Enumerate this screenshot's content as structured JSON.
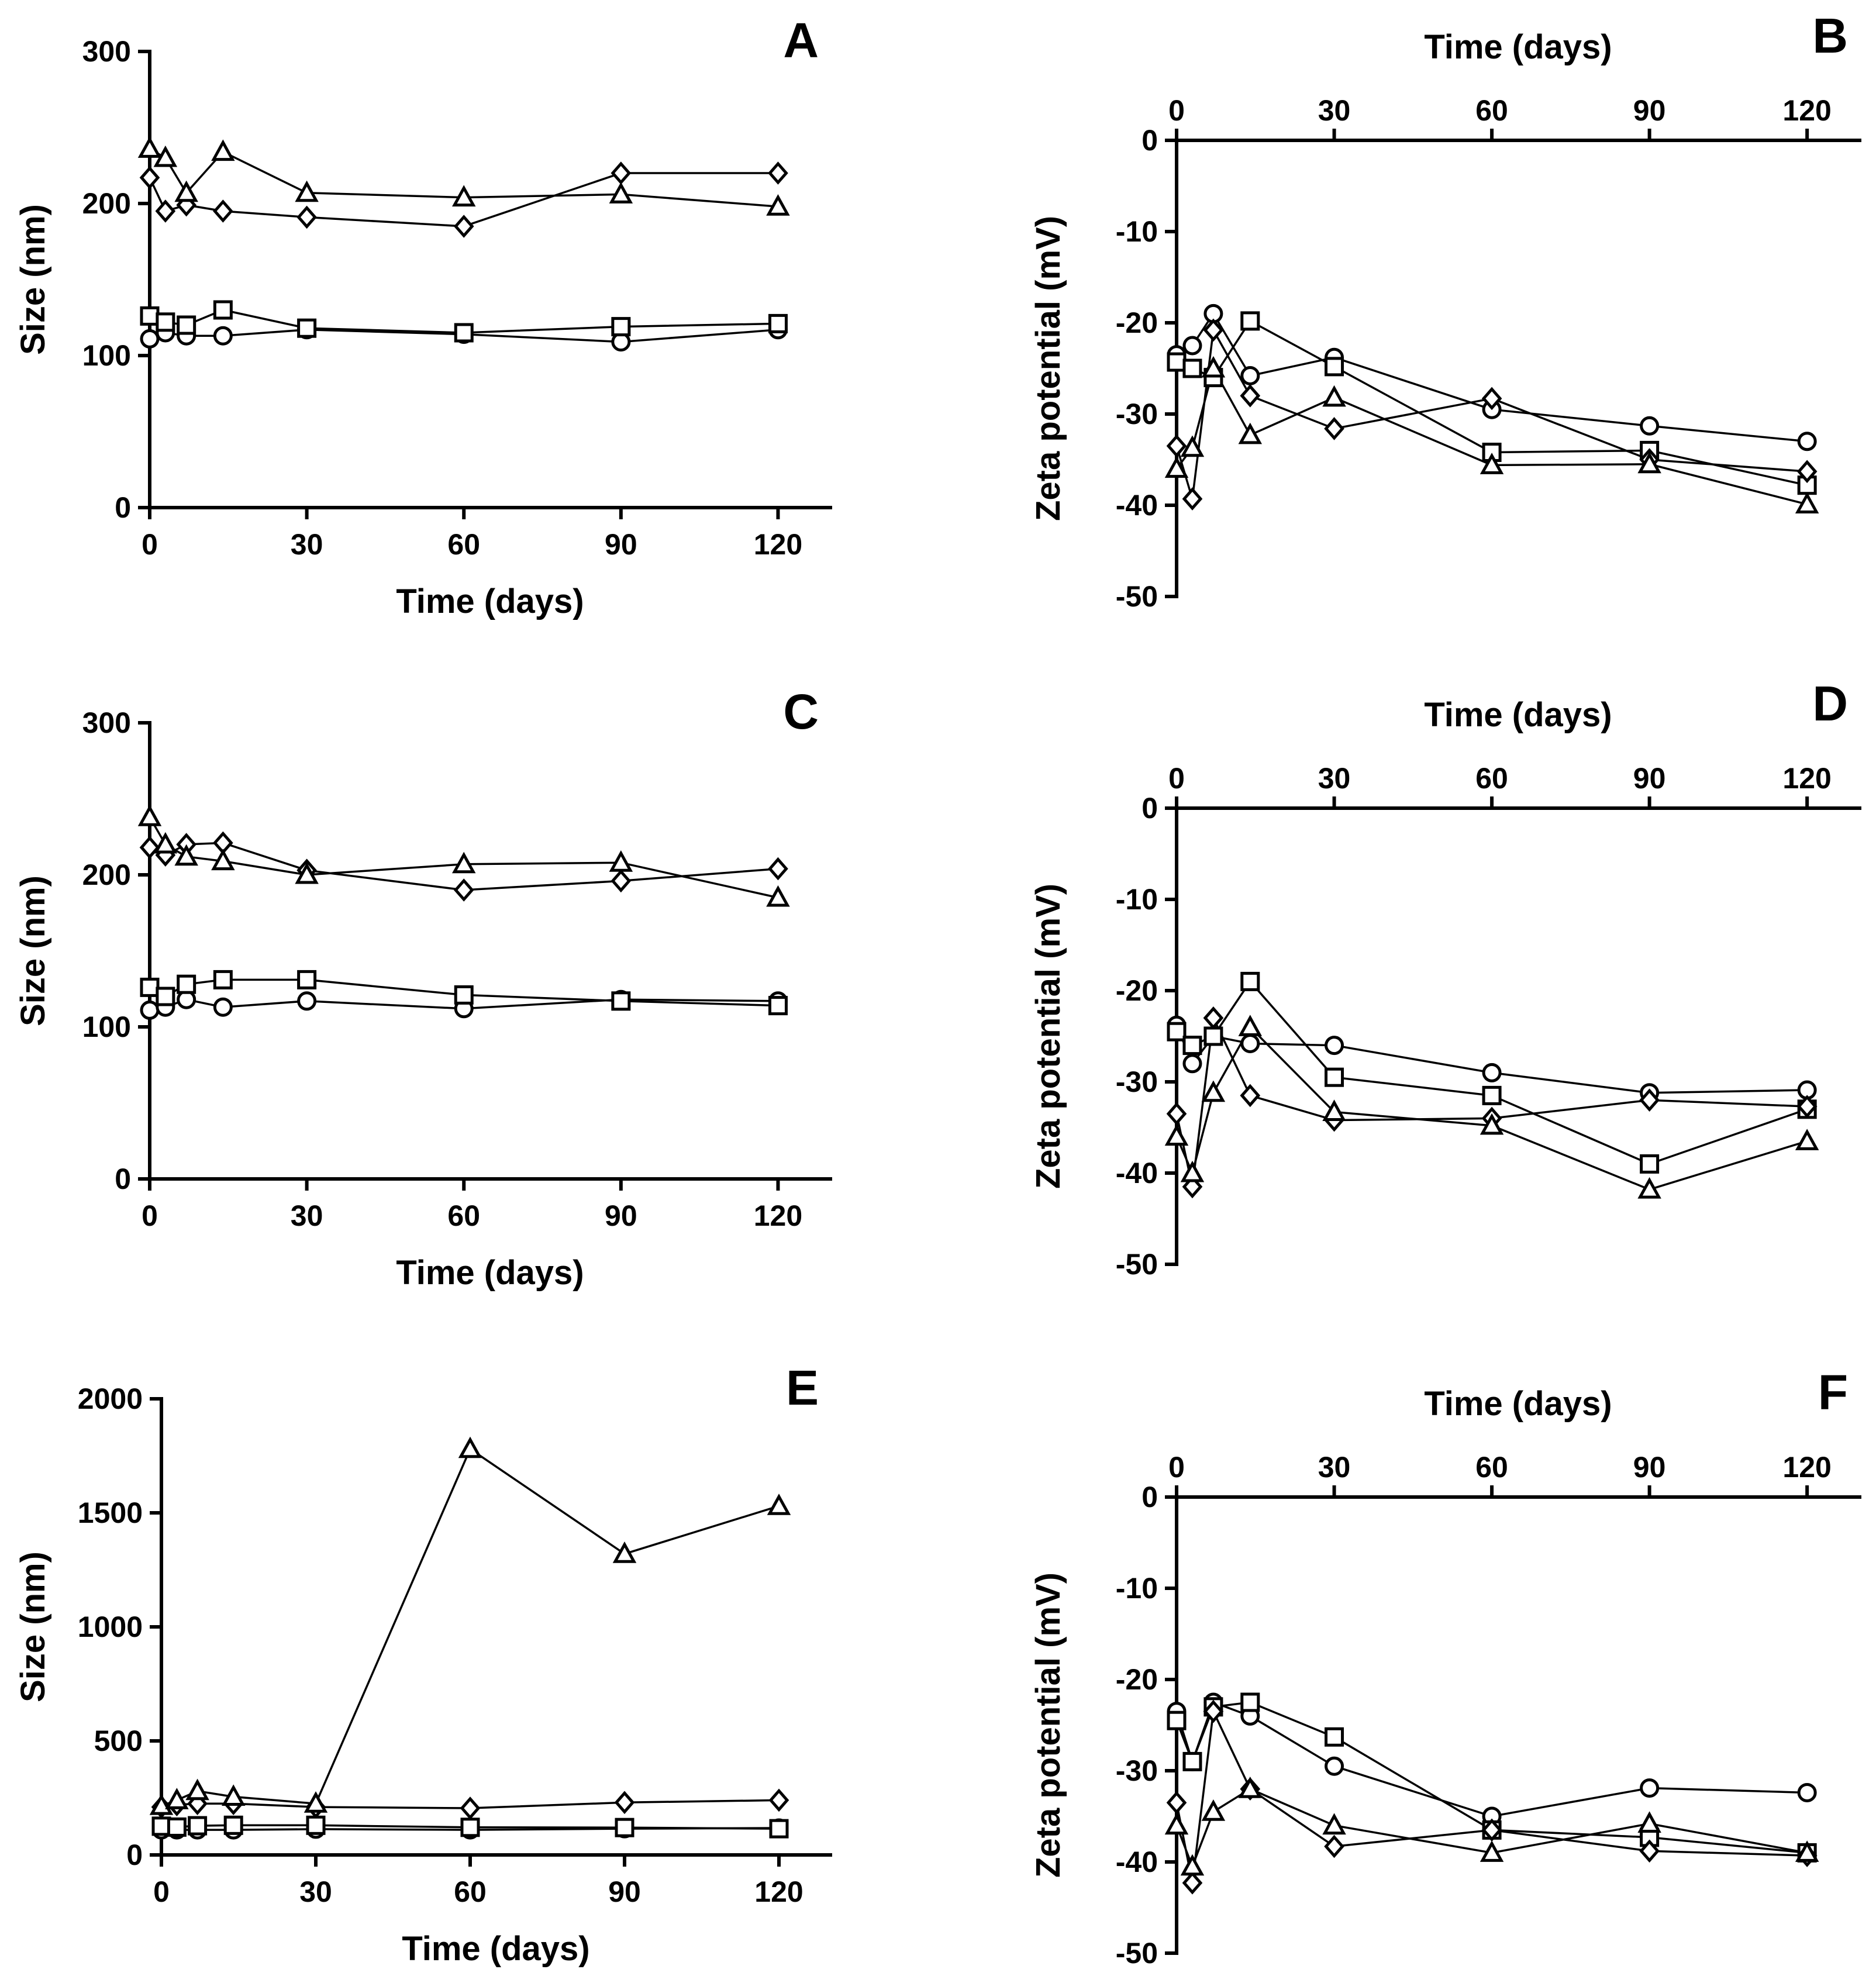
{
  "chart_data": [
    {
      "panel": "A",
      "type": "line",
      "title": "",
      "xlabel": "Time (days)",
      "ylabel": "Size (nm)",
      "x_axis_position": "bottom",
      "xlim": [
        0,
        130
      ],
      "ylim": [
        0,
        300
      ],
      "xticks": [
        0,
        30,
        60,
        90,
        120
      ],
      "yticks": [
        0,
        100,
        200,
        300
      ],
      "series": [
        {
          "name": "circle",
          "marker": "circle",
          "x": [
            0,
            3,
            7,
            14,
            30,
            60,
            90,
            120
          ],
          "values": [
            111,
            115,
            113,
            113,
            117,
            114,
            109,
            117
          ]
        },
        {
          "name": "square",
          "marker": "square",
          "x": [
            0,
            3,
            7,
            14,
            30,
            60,
            90,
            120
          ],
          "values": [
            126,
            122,
            120,
            130,
            118,
            115,
            119,
            121
          ]
        },
        {
          "name": "diamond",
          "marker": "diamond",
          "x": [
            0,
            3,
            7,
            14,
            30,
            60,
            90,
            120
          ],
          "values": [
            217,
            195,
            199,
            195,
            191,
            185,
            220,
            220
          ]
        },
        {
          "name": "triangle",
          "marker": "triangle",
          "x": [
            0,
            3,
            7,
            14,
            30,
            60,
            90,
            120
          ],
          "values": [
            236,
            230,
            207,
            234,
            207,
            204,
            206,
            198
          ]
        }
      ]
    },
    {
      "panel": "B",
      "type": "line",
      "title": "",
      "xlabel": "Time (days)",
      "ylabel": "Zeta potential (mV)",
      "x_axis_position": "top",
      "xlim": [
        0,
        130
      ],
      "ylim": [
        -50,
        0
      ],
      "xticks": [
        0,
        30,
        60,
        90,
        120
      ],
      "yticks": [
        0,
        -10,
        -20,
        -30,
        -40,
        -50
      ],
      "series": [
        {
          "name": "circle",
          "marker": "circle",
          "x": [
            0,
            3,
            7,
            14,
            30,
            60,
            90,
            120
          ],
          "values": [
            -23.5,
            -22.5,
            -19,
            -25.8,
            -23.8,
            -29.5,
            -31.3,
            -33
          ]
        },
        {
          "name": "square",
          "marker": "square",
          "x": [
            0,
            3,
            7,
            14,
            30,
            60,
            90,
            120
          ],
          "values": [
            -24.3,
            -25,
            -26,
            -19.8,
            -24.8,
            -34.2,
            -34,
            -37.8
          ]
        },
        {
          "name": "diamond",
          "marker": "diamond",
          "x": [
            0,
            3,
            7,
            14,
            30,
            60,
            90,
            120
          ],
          "values": [
            -33.5,
            -39.3,
            -20.8,
            -28,
            -31.6,
            -28.3,
            -35,
            -36.3
          ]
        },
        {
          "name": "triangle",
          "marker": "triangle",
          "x": [
            0,
            3,
            7,
            14,
            30,
            60,
            90,
            120
          ],
          "values": [
            -36,
            -33.7,
            -25,
            -32.3,
            -28.2,
            -35.6,
            -35.5,
            -39.9
          ]
        }
      ]
    },
    {
      "panel": "C",
      "type": "line",
      "title": "",
      "xlabel": "Time (days)",
      "ylabel": "Size (nm)",
      "x_axis_position": "bottom",
      "xlim": [
        0,
        130
      ],
      "ylim": [
        0,
        300
      ],
      "xticks": [
        0,
        30,
        60,
        90,
        120
      ],
      "yticks": [
        0,
        100,
        200,
        300
      ],
      "series": [
        {
          "name": "circle",
          "marker": "circle",
          "x": [
            0,
            3,
            7,
            14,
            30,
            60,
            90,
            120
          ],
          "values": [
            111,
            113,
            118,
            113,
            117,
            112,
            118,
            117
          ]
        },
        {
          "name": "square",
          "marker": "square",
          "x": [
            0,
            3,
            7,
            14,
            30,
            60,
            90,
            120
          ],
          "values": [
            126,
            120,
            128,
            131,
            131,
            121,
            117,
            114
          ]
        },
        {
          "name": "diamond",
          "marker": "diamond",
          "x": [
            0,
            3,
            7,
            14,
            30,
            60,
            90,
            120
          ],
          "values": [
            218,
            213,
            220,
            221,
            203,
            190,
            196,
            204
          ]
        },
        {
          "name": "triangle",
          "marker": "triangle",
          "x": [
            0,
            3,
            7,
            14,
            30,
            60,
            90,
            120
          ],
          "values": [
            238,
            220,
            212,
            209,
            200,
            207,
            208,
            185
          ]
        }
      ]
    },
    {
      "panel": "D",
      "type": "line",
      "title": "",
      "xlabel": "Time (days)",
      "ylabel": "Zeta potential (mV)",
      "x_axis_position": "top",
      "xlim": [
        0,
        130
      ],
      "ylim": [
        -50,
        0
      ],
      "xticks": [
        0,
        30,
        60,
        90,
        120
      ],
      "yticks": [
        0,
        -10,
        -20,
        -30,
        -40,
        -50
      ],
      "series": [
        {
          "name": "circle",
          "marker": "circle",
          "x": [
            0,
            3,
            7,
            14,
            30,
            60,
            90,
            120
          ],
          "values": [
            -23.8,
            -28,
            -25,
            -25.8,
            -26,
            -29,
            -31.2,
            -30.9
          ]
        },
        {
          "name": "square",
          "marker": "square",
          "x": [
            0,
            3,
            7,
            14,
            30,
            60,
            90,
            120
          ],
          "values": [
            -24.5,
            -26,
            -25,
            -19,
            -29.5,
            -31.5,
            -39,
            -33
          ]
        },
        {
          "name": "diamond",
          "marker": "diamond",
          "x": [
            0,
            3,
            7,
            14,
            30,
            60,
            90,
            120
          ],
          "values": [
            -33.5,
            -41.5,
            -23,
            -31.5,
            -34.2,
            -34,
            -32,
            -32.7
          ]
        },
        {
          "name": "triangle",
          "marker": "triangle",
          "x": [
            0,
            3,
            7,
            14,
            30,
            60,
            90,
            120
          ],
          "values": [
            -36,
            -40,
            -31.2,
            -24,
            -33.3,
            -34.8,
            -41.8,
            -36.5
          ]
        }
      ]
    },
    {
      "panel": "E",
      "type": "line",
      "title": "",
      "xlabel": "Time (days)",
      "ylabel": "Size (nm)",
      "x_axis_position": "bottom",
      "xlim": [
        0,
        130
      ],
      "ylim": [
        0,
        2000
      ],
      "xticks": [
        0,
        30,
        60,
        90,
        120
      ],
      "yticks": [
        0,
        500,
        1000,
        1500,
        2000
      ],
      "series": [
        {
          "name": "circle",
          "marker": "circle",
          "x": [
            0,
            3,
            7,
            14,
            30,
            60,
            90,
            120
          ],
          "values": [
            110,
            110,
            110,
            110,
            113,
            110,
            115,
            118
          ]
        },
        {
          "name": "square",
          "marker": "square",
          "x": [
            0,
            3,
            7,
            14,
            30,
            60,
            90,
            120
          ],
          "values": [
            126,
            122,
            128,
            130,
            130,
            121,
            120,
            115
          ]
        },
        {
          "name": "diamond",
          "marker": "diamond",
          "x": [
            0,
            3,
            7,
            14,
            30,
            60,
            90,
            120
          ],
          "values": [
            210,
            220,
            225,
            225,
            210,
            205,
            230,
            240
          ]
        },
        {
          "name": "triangle",
          "marker": "triangle",
          "x": [
            0,
            3,
            7,
            14,
            30,
            60,
            90,
            120
          ],
          "values": [
            215,
            240,
            280,
            255,
            225,
            1780,
            1320,
            1530
          ]
        }
      ]
    },
    {
      "panel": "F",
      "type": "line",
      "title": "",
      "xlabel": "Time (days)",
      "ylabel": "Zeta potential (mV)",
      "x_axis_position": "top",
      "xlim": [
        0,
        130
      ],
      "ylim": [
        -50,
        0
      ],
      "xticks": [
        0,
        30,
        60,
        90,
        120
      ],
      "yticks": [
        0,
        -10,
        -20,
        -30,
        -40,
        -50
      ],
      "series": [
        {
          "name": "circle",
          "marker": "circle",
          "x": [
            0,
            3,
            7,
            14,
            30,
            60,
            90,
            120
          ],
          "values": [
            -23.5,
            -29,
            -22.5,
            -24,
            -29.5,
            -35,
            -31.9,
            -32.4
          ]
        },
        {
          "name": "square",
          "marker": "square",
          "x": [
            0,
            3,
            7,
            14,
            30,
            60,
            90,
            120
          ],
          "values": [
            -24.5,
            -29,
            -23,
            -22.5,
            -26.3,
            -36.5,
            -37.3,
            -39
          ]
        },
        {
          "name": "diamond",
          "marker": "diamond",
          "x": [
            0,
            3,
            7,
            14,
            30,
            60,
            90,
            120
          ],
          "values": [
            -33.5,
            -42.3,
            -23.5,
            -32,
            -38.3,
            -36.5,
            -38.8,
            -39.3
          ]
        },
        {
          "name": "triangle",
          "marker": "triangle",
          "x": [
            0,
            3,
            7,
            14,
            30,
            60,
            90,
            120
          ],
          "values": [
            -36,
            -40.5,
            -34.5,
            -32,
            -36,
            -39,
            -35.8,
            -39
          ]
        }
      ]
    }
  ]
}
